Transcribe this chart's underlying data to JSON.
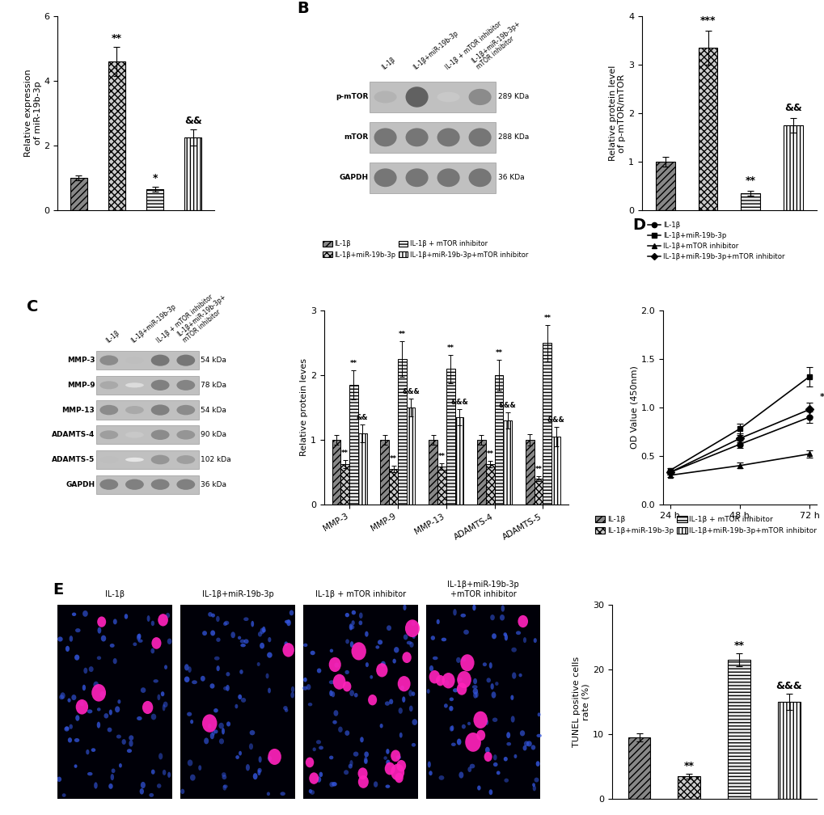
{
  "panel_A": {
    "ylabel": "Relative expression\nof miR-19b-3p",
    "ylim": [
      0,
      6
    ],
    "yticks": [
      0,
      2,
      4,
      6
    ],
    "values": [
      1.0,
      4.6,
      0.65,
      2.25
    ],
    "errors": [
      0.08,
      0.45,
      0.08,
      0.25
    ],
    "annotations": [
      "",
      "**",
      "*",
      "&&"
    ],
    "legend_labels": [
      "IL-1β",
      "IL-1β+miR-19b-3p",
      "IL-1β+mTOR inhibitor",
      "IL-1β+miR-19b-3p+mTOR inhibitor"
    ]
  },
  "panel_B_bar": {
    "ylabel": "Relative protein level\nof p-mTOR/mTOR",
    "ylim": [
      0,
      4
    ],
    "yticks": [
      0,
      1,
      2,
      3,
      4
    ],
    "values": [
      1.0,
      3.35,
      0.35,
      1.75
    ],
    "errors": [
      0.1,
      0.35,
      0.05,
      0.15
    ],
    "annotations": [
      "",
      "***",
      "**",
      "&&"
    ],
    "legend_labels": [
      "IL-1β",
      "IL-1β+miR-19b-3p",
      "IL-1β+mTOR inhibitor",
      "IL-1β+miR-19b-3p+mTOR inhibitor"
    ]
  },
  "panel_C_bar": {
    "ylabel": "Relative protein leves",
    "ylim": [
      0,
      3
    ],
    "yticks": [
      0,
      1,
      2,
      3
    ],
    "proteins": [
      "MMP-3",
      "MMP-9",
      "MMP-13",
      "ADAMTS-4",
      "ADAMTS-5"
    ],
    "values": [
      [
        1.0,
        0.62,
        1.85,
        1.1
      ],
      [
        1.0,
        0.55,
        2.25,
        1.5
      ],
      [
        1.0,
        0.58,
        2.1,
        1.35
      ],
      [
        1.0,
        0.62,
        2.0,
        1.3
      ],
      [
        1.0,
        0.4,
        2.5,
        1.05
      ]
    ],
    "errors": [
      [
        0.08,
        0.06,
        0.22,
        0.14
      ],
      [
        0.08,
        0.05,
        0.28,
        0.14
      ],
      [
        0.08,
        0.05,
        0.22,
        0.13
      ],
      [
        0.08,
        0.05,
        0.24,
        0.13
      ],
      [
        0.09,
        0.04,
        0.28,
        0.15
      ]
    ],
    "annotations": [
      [
        "",
        "**",
        "**",
        "&&"
      ],
      [
        "",
        "**",
        "**",
        "&&&"
      ],
      [
        "",
        "**",
        "**",
        "&&&"
      ],
      [
        "",
        "**",
        "**",
        "&&&"
      ],
      [
        "",
        "**",
        "**",
        "&&&"
      ]
    ],
    "legend_labels": [
      "IL-1β",
      "IL-1β+miR-19b-3p",
      "IL-1β + mTOR inhibitor",
      "IL-1β+miR-19b-3p+mTOR inhibitor"
    ]
  },
  "panel_D": {
    "ylabel": "OD Value (450nm)",
    "ylim": [
      0.0,
      2.0
    ],
    "yticks": [
      0.0,
      0.5,
      1.0,
      1.5,
      2.0
    ],
    "timepoints": [
      "24 h",
      "48 h",
      "72 h"
    ],
    "series_labels": [
      "IL-1β",
      "IL-1β+miR-19b-3p",
      "IL-1β+mTOR inhibitor",
      "IL-1β+miR-19b-3p+mTOR inhibitor"
    ],
    "series_values": [
      [
        0.33,
        0.62,
        0.9
      ],
      [
        0.35,
        0.78,
        1.32
      ],
      [
        0.3,
        0.4,
        0.52
      ],
      [
        0.33,
        0.68,
        0.98
      ]
    ],
    "series_errors": [
      [
        0.02,
        0.04,
        0.06
      ],
      [
        0.02,
        0.05,
        0.1
      ],
      [
        0.02,
        0.03,
        0.04
      ],
      [
        0.02,
        0.04,
        0.07
      ]
    ]
  },
  "panel_E_bar": {
    "ylabel": "TUNEL positive cells\nrate (%)",
    "ylim": [
      0,
      30
    ],
    "yticks": [
      0,
      10,
      20,
      30
    ],
    "values": [
      9.5,
      3.5,
      21.5,
      15.0
    ],
    "errors": [
      0.6,
      0.4,
      1.0,
      1.2
    ],
    "annotations": [
      "",
      "**",
      "**",
      "&&&"
    ],
    "legend_labels": [
      "IL-1β",
      "IL-1β+miR-19b-3p",
      "IL-1β + mTOR inhibitor",
      "IL-1β+miR-19b-3p+mTOR inhibitor"
    ]
  },
  "hatch_patterns": [
    "////",
    "xxxx",
    "----",
    "||||"
  ],
  "bar_facecolors": [
    "#888888",
    "#cccccc",
    "#eeeeee",
    "#ffffff"
  ],
  "bar_edgecolor": "black",
  "font_size": 8,
  "title_font_size": 14,
  "annotation_font_size": 8,
  "background_color": "#ffffff",
  "wb_B_cols": [
    "IL-1β",
    "IL-1β+miR-19b-3p",
    "IL-1β + mTOR inhibitor",
    "IL-1β+miR-19b-3p+\nmTOR inhibitor"
  ],
  "wb_B_rows": [
    {
      "label": "p-mTOR",
      "kda": "289 KDa",
      "intensities": [
        0.35,
        0.75,
        0.25,
        0.55
      ]
    },
    {
      "label": "mTOR",
      "kda": "288 KDa",
      "intensities": [
        0.65,
        0.65,
        0.65,
        0.65
      ]
    },
    {
      "label": "GAPDH",
      "kda": "36 KDa",
      "intensities": [
        0.65,
        0.65,
        0.65,
        0.65
      ]
    }
  ],
  "wb_C_cols": [
    "IL-1β",
    "IL-1β+miR-19b-3p",
    "IL-1β + mTOR inhibitor",
    "IL-1β+miR-19b-3p+\nmTOR inhibitor"
  ],
  "wb_C_rows": [
    {
      "label": "MMP-3",
      "kda": "54 kDa",
      "intensities": [
        0.55,
        0.3,
        0.65,
        0.65
      ]
    },
    {
      "label": "MMP-9",
      "kda": "78 kDa",
      "intensities": [
        0.4,
        0.15,
        0.6,
        0.58
      ]
    },
    {
      "label": "MMP-13",
      "kda": "54 kDa",
      "intensities": [
        0.55,
        0.4,
        0.6,
        0.55
      ]
    },
    {
      "label": "ADAMTS-4",
      "kda": "90 kDa",
      "intensities": [
        0.45,
        0.25,
        0.55,
        0.5
      ]
    },
    {
      "label": "ADAMTS-5",
      "kda": "102 kDa",
      "intensities": [
        0.3,
        0.1,
        0.5,
        0.45
      ]
    },
    {
      "label": "GAPDH",
      "kda": "36 kDa",
      "intensities": [
        0.6,
        0.6,
        0.6,
        0.6
      ]
    }
  ]
}
